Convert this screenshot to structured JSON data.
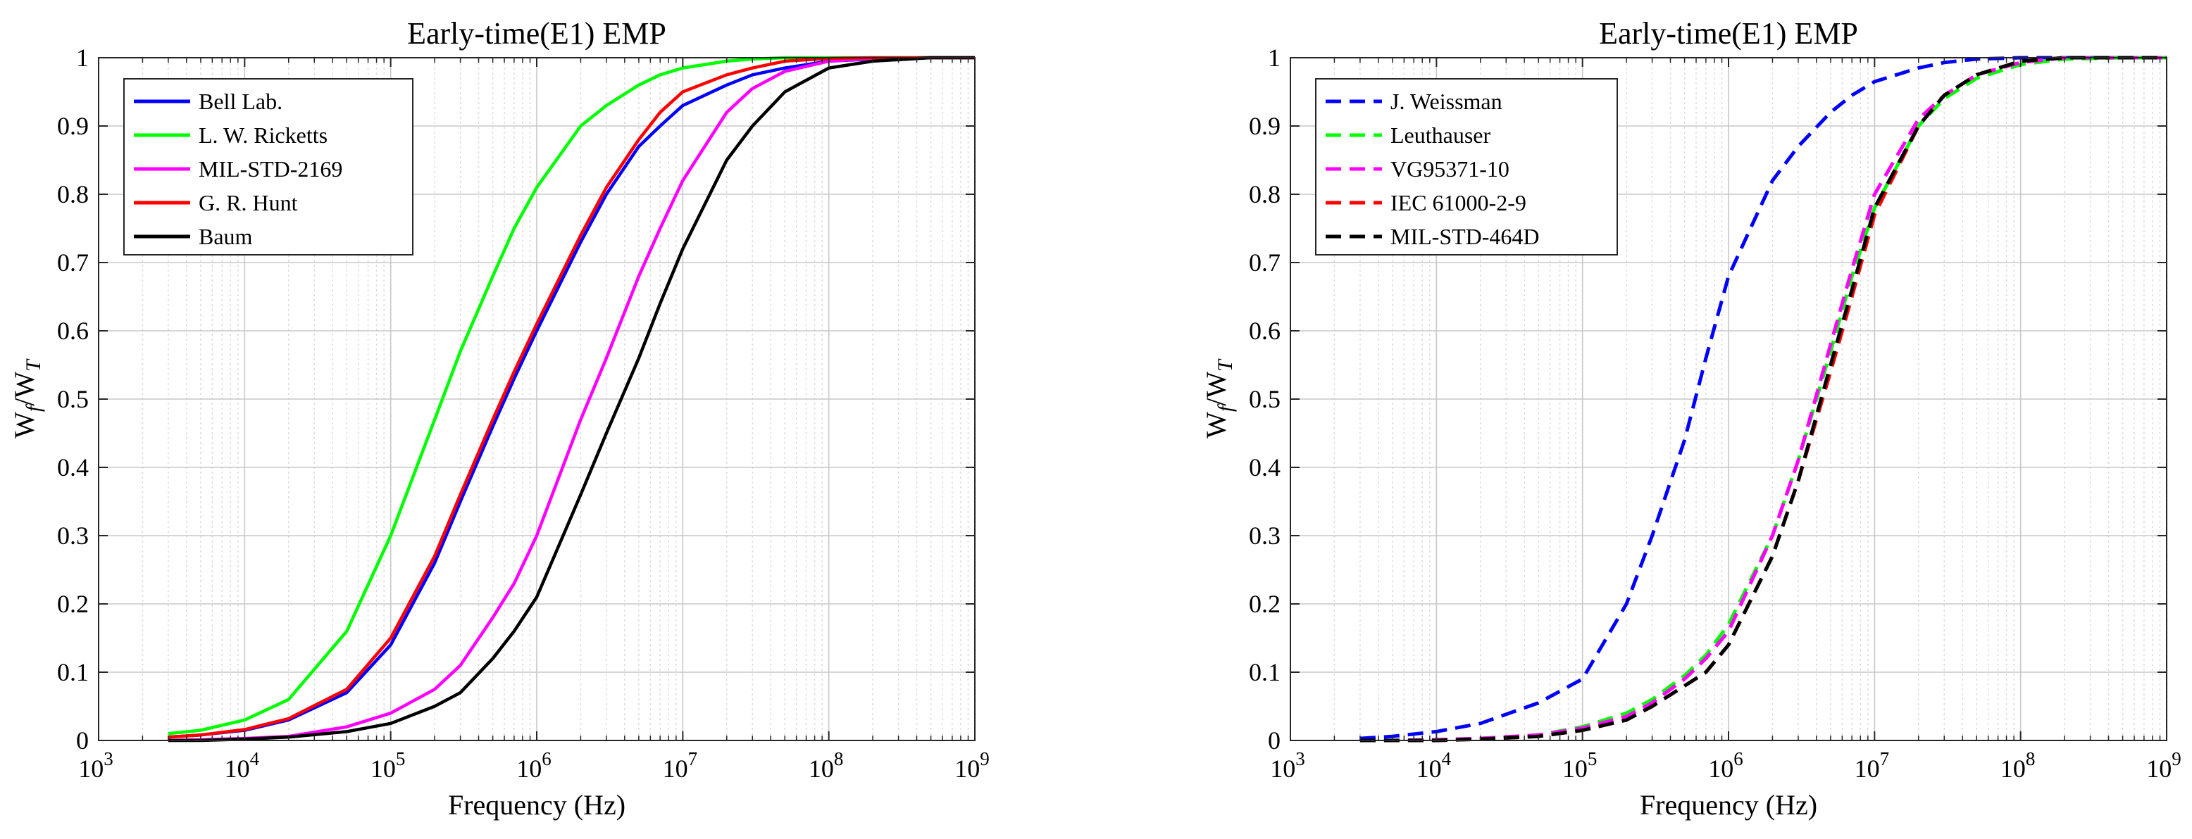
{
  "chart_data": [
    {
      "type": "line",
      "title": "Early-time(E1) EMP",
      "xlabel": "Frequency (Hz)",
      "ylabel_main": "W",
      "ylabel_sub1": "f",
      "ylabel_mid": "/W",
      "ylabel_sub2": "T",
      "xscale": "log",
      "xlim": [
        1000,
        1000000000
      ],
      "ylim": [
        0,
        1
      ],
      "x_ticks": [
        {
          "base": "10",
          "exp": "3"
        },
        {
          "base": "10",
          "exp": "4"
        },
        {
          "base": "10",
          "exp": "5"
        },
        {
          "base": "10",
          "exp": "6"
        },
        {
          "base": "10",
          "exp": "7"
        },
        {
          "base": "10",
          "exp": "8"
        },
        {
          "base": "10",
          "exp": "9"
        }
      ],
      "y_ticks": [
        "0",
        "0.1",
        "0.2",
        "0.3",
        "0.4",
        "0.5",
        "0.6",
        "0.7",
        "0.8",
        "0.9",
        "1"
      ],
      "grid": true,
      "legend_position": "top-left",
      "x": [
        3000,
        5000,
        10000,
        20000,
        50000,
        100000,
        200000,
        300000,
        500000,
        700000,
        1000000,
        2000000,
        3000000,
        5000000,
        7000000,
        10000000,
        20000000,
        30000000,
        50000000,
        100000000,
        200000000,
        500000000,
        1000000000
      ],
      "series": [
        {
          "name": "Bell Lab.",
          "color": "#0000ff",
          "dash": "solid",
          "values": [
            0.005,
            0.008,
            0.015,
            0.03,
            0.07,
            0.14,
            0.26,
            0.35,
            0.46,
            0.53,
            0.6,
            0.73,
            0.8,
            0.87,
            0.9,
            0.93,
            0.96,
            0.975,
            0.985,
            0.995,
            0.998,
            1.0,
            1.0
          ]
        },
        {
          "name": " L. W. Ricketts",
          "color": "#00ff00",
          "dash": "solid",
          "values": [
            0.01,
            0.015,
            0.03,
            0.06,
            0.16,
            0.3,
            0.47,
            0.57,
            0.68,
            0.75,
            0.81,
            0.9,
            0.93,
            0.96,
            0.975,
            0.985,
            0.995,
            0.998,
            1.0,
            1.0,
            1.0,
            1.0,
            1.0
          ]
        },
        {
          "name": "MIL-STD-2169",
          "color": "#ff00ff",
          "dash": "solid",
          "values": [
            0.0,
            0.001,
            0.003,
            0.006,
            0.02,
            0.04,
            0.075,
            0.11,
            0.18,
            0.23,
            0.3,
            0.47,
            0.56,
            0.68,
            0.75,
            0.82,
            0.92,
            0.955,
            0.98,
            0.995,
            0.999,
            1.0,
            1.0
          ]
        },
        {
          "name": "G. R. Hunt",
          "color": "#ff0000",
          "dash": "solid",
          "values": [
            0.005,
            0.008,
            0.016,
            0.032,
            0.075,
            0.15,
            0.27,
            0.36,
            0.47,
            0.54,
            0.61,
            0.74,
            0.81,
            0.88,
            0.92,
            0.95,
            0.975,
            0.985,
            0.995,
            0.999,
            1.0,
            1.0,
            1.0
          ]
        },
        {
          "name": "Baum",
          "color": "#000000",
          "dash": "solid",
          "values": [
            0.0,
            0.0,
            0.002,
            0.005,
            0.013,
            0.025,
            0.05,
            0.07,
            0.12,
            0.16,
            0.21,
            0.36,
            0.45,
            0.56,
            0.64,
            0.72,
            0.85,
            0.9,
            0.95,
            0.985,
            0.995,
            1.0,
            1.0
          ]
        }
      ]
    },
    {
      "type": "line",
      "title": "Early-time(E1) EMP",
      "xlabel": "Frequency (Hz)",
      "ylabel_main": "W",
      "ylabel_sub1": "f",
      "ylabel_mid": "/W",
      "ylabel_sub2": "T",
      "xscale": "log",
      "xlim": [
        1000,
        1000000000
      ],
      "ylim": [
        0,
        1
      ],
      "x_ticks": [
        {
          "base": "10",
          "exp": "3"
        },
        {
          "base": "10",
          "exp": "4"
        },
        {
          "base": "10",
          "exp": "5"
        },
        {
          "base": "10",
          "exp": "6"
        },
        {
          "base": "10",
          "exp": "7"
        },
        {
          "base": "10",
          "exp": "8"
        },
        {
          "base": "10",
          "exp": "9"
        }
      ],
      "y_ticks": [
        "0",
        "0.1",
        "0.2",
        "0.3",
        "0.4",
        "0.5",
        "0.6",
        "0.7",
        "0.8",
        "0.9",
        "1"
      ],
      "grid": true,
      "legend_position": "top-left",
      "x": [
        3000,
        5000,
        10000,
        20000,
        50000,
        100000,
        200000,
        300000,
        500000,
        700000,
        1000000,
        2000000,
        3000000,
        5000000,
        7000000,
        10000000,
        20000000,
        30000000,
        50000000,
        100000000,
        200000000,
        500000000,
        1000000000
      ],
      "series": [
        {
          "name": "J. Weissman",
          "color": "#0000ff",
          "dash": "dashed",
          "values": [
            0.003,
            0.006,
            0.013,
            0.025,
            0.055,
            0.09,
            0.2,
            0.3,
            0.44,
            0.56,
            0.68,
            0.82,
            0.87,
            0.92,
            0.945,
            0.965,
            0.985,
            0.993,
            0.998,
            1.0,
            1.0,
            1.0,
            1.0
          ]
        },
        {
          "name": "Leuthauser",
          "color": "#00ff00",
          "dash": "dashed",
          "values": [
            0.0,
            0.0,
            0.001,
            0.003,
            0.008,
            0.02,
            0.04,
            0.06,
            0.095,
            0.125,
            0.17,
            0.3,
            0.41,
            0.57,
            0.68,
            0.78,
            0.9,
            0.94,
            0.97,
            0.99,
            0.998,
            1.0,
            1.0
          ]
        },
        {
          "name": "VG95371-10",
          "color": "#ff00ff",
          "dash": "dashed",
          "values": [
            0.0,
            0.0,
            0.001,
            0.003,
            0.008,
            0.018,
            0.035,
            0.055,
            0.09,
            0.12,
            0.16,
            0.3,
            0.41,
            0.58,
            0.69,
            0.8,
            0.91,
            0.945,
            0.975,
            0.993,
            1.0,
            1.0,
            1.0
          ]
        },
        {
          "name": "IEC 61000-2-9",
          "color": "#ff0000",
          "dash": "dashed",
          "values": [
            0.0,
            0.0,
            0.0,
            0.002,
            0.006,
            0.015,
            0.03,
            0.05,
            0.08,
            0.1,
            0.14,
            0.27,
            0.38,
            0.54,
            0.65,
            0.77,
            0.9,
            0.945,
            0.975,
            0.995,
            1.0,
            1.0,
            1.0
          ]
        },
        {
          "name": "MIL-STD-464D",
          "color": "#000000",
          "dash": "dashed",
          "values": [
            0.0,
            0.0,
            0.0,
            0.002,
            0.006,
            0.015,
            0.03,
            0.05,
            0.08,
            0.1,
            0.14,
            0.27,
            0.38,
            0.55,
            0.66,
            0.78,
            0.9,
            0.945,
            0.975,
            0.995,
            1.0,
            1.0,
            1.0
          ]
        }
      ]
    }
  ]
}
